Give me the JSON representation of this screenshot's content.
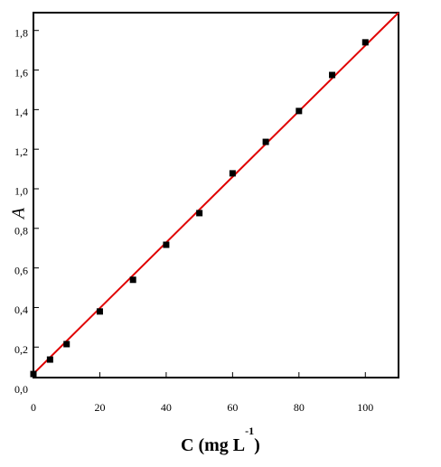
{
  "chart_data": {
    "type": "scatter",
    "xlabel": "C (mg L",
    "xlabel_sup": "-1",
    "xlabel_end": ")",
    "ylabel": "A",
    "x": [
      0,
      5,
      10,
      20,
      30,
      40,
      50,
      60,
      70,
      80,
      90,
      100
    ],
    "values": [
      0.064,
      0.137,
      0.215,
      0.38,
      0.54,
      0.717,
      0.877,
      1.078,
      1.237,
      1.393,
      1.575,
      1.74
    ],
    "color": "#000000",
    "fit": {
      "x": [
        0,
        110
      ],
      "values": [
        0.065,
        1.89
      ],
      "color": "#e00000"
    },
    "xlim": [
      0,
      110
    ],
    "xticks": [
      0,
      20,
      40,
      60,
      80,
      100
    ],
    "ylim": [
      0.046,
      1.89
    ],
    "yticks": [
      {
        "value": 0.0,
        "label": "0,0"
      },
      {
        "value": 0.2,
        "label": "0,2"
      },
      {
        "value": 0.4,
        "label": "0,4"
      },
      {
        "value": 0.6,
        "label": "0,6"
      },
      {
        "value": 0.8,
        "label": "0,8"
      },
      {
        "value": 1.0,
        "label": "1,0"
      },
      {
        "value": 1.2,
        "label": "1,2"
      },
      {
        "value": 1.4,
        "label": "1,4"
      },
      {
        "value": 1.6,
        "label": "1,6"
      },
      {
        "value": 1.8,
        "label": "1,8"
      }
    ],
    "grid": false
  }
}
